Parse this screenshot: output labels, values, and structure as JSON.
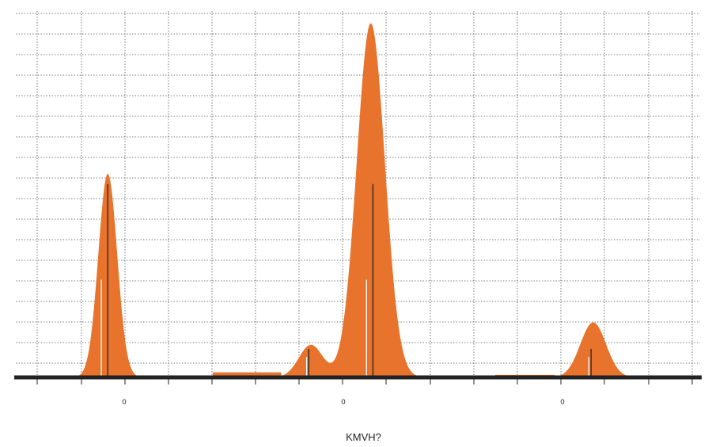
{
  "chart_data": {
    "type": "area",
    "title": "",
    "xlabel": "KMVH?",
    "ylabel": "",
    "x_tick_labels": [
      "0",
      "0",
      "0"
    ],
    "xlim": [
      0,
      16
    ],
    "ylim": [
      0,
      18
    ],
    "grid": true,
    "series": [
      {
        "color": "#e8732c",
        "peaks": [
          {
            "center": 2.15,
            "height": 10.0,
            "width": 0.22
          },
          {
            "center": 6.9,
            "height": 1.6,
            "width": 0.28
          },
          {
            "center": 8.3,
            "height": 17.4,
            "width": 0.33
          },
          {
            "center": 13.5,
            "height": 2.7,
            "width": 0.3
          }
        ],
        "baseline_segments": [
          {
            "from": 1.0,
            "to": 3.5,
            "level": 0.05
          },
          {
            "from": 4.6,
            "to": 6.2,
            "level": 0.25
          },
          {
            "from": 11.2,
            "to": 12.6,
            "level": 0.12
          },
          {
            "from": 14.2,
            "to": 15.1,
            "level": 0.05
          }
        ]
      }
    ],
    "markers": [
      {
        "x": 2.15,
        "y": 9.5,
        "color": "#222222"
      },
      {
        "x": 2.0,
        "y": 4.8,
        "color": "#ffffff"
      },
      {
        "x": 6.85,
        "y": 1.4,
        "color": "#222222"
      },
      {
        "x": 6.8,
        "y": 1.0,
        "color": "#ffffff"
      },
      {
        "x": 8.35,
        "y": 9.5,
        "color": "#222222"
      },
      {
        "x": 8.2,
        "y": 4.8,
        "color": "#ffffff"
      },
      {
        "x": 13.45,
        "y": 1.4,
        "color": "#222222"
      },
      {
        "x": 13.4,
        "y": 1.0,
        "color": "#ffffff"
      }
    ],
    "colors": {
      "fill": "#e8732c",
      "axis": "#222222",
      "grid": "#555555"
    }
  }
}
